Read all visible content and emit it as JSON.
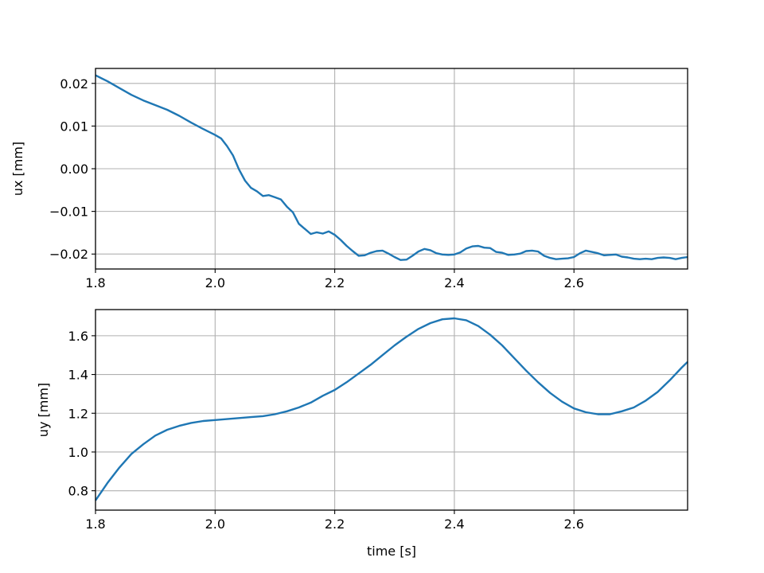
{
  "chart_data": [
    {
      "type": "line",
      "title": "",
      "xlabel": "",
      "ylabel": "ux [mm]",
      "xlim": [
        1.8,
        2.79
      ],
      "ylim": [
        -0.0235,
        0.0235
      ],
      "xticks": [
        "1.8",
        "2.0",
        "2.2",
        "2.4",
        "2.6"
      ],
      "yticks": [
        "−0.02",
        "−0.01",
        "0.00",
        "0.01",
        "0.02"
      ],
      "grid": true,
      "series": [
        {
          "color": "#1f77b4",
          "x": [
            1.8,
            1.82,
            1.84,
            1.86,
            1.88,
            1.9,
            1.92,
            1.94,
            1.96,
            1.98,
            2.0,
            2.01,
            2.02,
            2.03,
            2.04,
            2.05,
            2.06,
            2.07,
            2.08,
            2.09,
            2.1,
            2.11,
            2.12,
            2.13,
            2.14,
            2.15,
            2.16,
            2.17,
            2.18,
            2.19,
            2.2,
            2.21,
            2.22,
            2.23,
            2.24,
            2.25,
            2.26,
            2.27,
            2.28,
            2.29,
            2.3,
            2.31,
            2.32,
            2.33,
            2.34,
            2.35,
            2.36,
            2.37,
            2.38,
            2.39,
            2.4,
            2.41,
            2.42,
            2.43,
            2.44,
            2.45,
            2.46,
            2.47,
            2.48,
            2.49,
            2.5,
            2.51,
            2.52,
            2.53,
            2.54,
            2.55,
            2.56,
            2.57,
            2.58,
            2.59,
            2.6,
            2.61,
            2.62,
            2.63,
            2.64,
            2.65,
            2.66,
            2.67,
            2.68,
            2.69,
            2.7,
            2.71,
            2.72,
            2.73,
            2.74,
            2.75,
            2.76,
            2.77,
            2.78,
            2.79
          ],
          "y": [
            0.0219,
            0.0205,
            0.0189,
            0.0173,
            0.016,
            0.0149,
            0.0138,
            0.0124,
            0.0108,
            0.0093,
            0.0079,
            0.0071,
            0.0053,
            0.0031,
            -0.0002,
            -0.0028,
            -0.0045,
            -0.0053,
            -0.0064,
            -0.0062,
            -0.0067,
            -0.0072,
            -0.0089,
            -0.0102,
            -0.0129,
            -0.0141,
            -0.0153,
            -0.0149,
            -0.0152,
            -0.0147,
            -0.0155,
            -0.0167,
            -0.0181,
            -0.0193,
            -0.0204,
            -0.0203,
            -0.0197,
            -0.0193,
            -0.0192,
            -0.0199,
            -0.0207,
            -0.0214,
            -0.0213,
            -0.0204,
            -0.0194,
            -0.0188,
            -0.0191,
            -0.0198,
            -0.0201,
            -0.0202,
            -0.0201,
            -0.0196,
            -0.0187,
            -0.0182,
            -0.0181,
            -0.0185,
            -0.0186,
            -0.0195,
            -0.0197,
            -0.0202,
            -0.0201,
            -0.0199,
            -0.0193,
            -0.0192,
            -0.0194,
            -0.0204,
            -0.0209,
            -0.0212,
            -0.0211,
            -0.021,
            -0.0207,
            -0.0198,
            -0.0192,
            -0.0195,
            -0.0198,
            -0.0203,
            -0.0202,
            -0.0201,
            -0.0206,
            -0.0208,
            -0.0211,
            -0.0212,
            -0.0211,
            -0.0212,
            -0.0209,
            -0.0208,
            -0.0209,
            -0.0212,
            -0.0209,
            -0.0207
          ]
        }
      ]
    },
    {
      "type": "line",
      "title": "",
      "xlabel": "time [s]",
      "ylabel": "uy [mm]",
      "xlim": [
        1.8,
        2.79
      ],
      "ylim": [
        0.7,
        1.735
      ],
      "xticks": [
        "1.8",
        "2.0",
        "2.2",
        "2.4",
        "2.6"
      ],
      "yticks": [
        "0.8",
        "1.0",
        "1.2",
        "1.4",
        "1.6"
      ],
      "grid": true,
      "series": [
        {
          "color": "#1f77b4",
          "x": [
            1.8,
            1.82,
            1.84,
            1.86,
            1.88,
            1.9,
            1.92,
            1.94,
            1.96,
            1.98,
            2.0,
            2.02,
            2.04,
            2.06,
            2.08,
            2.1,
            2.12,
            2.14,
            2.16,
            2.18,
            2.2,
            2.22,
            2.24,
            2.26,
            2.28,
            2.3,
            2.32,
            2.34,
            2.36,
            2.38,
            2.4,
            2.42,
            2.44,
            2.46,
            2.48,
            2.5,
            2.52,
            2.54,
            2.56,
            2.58,
            2.6,
            2.62,
            2.64,
            2.66,
            2.68,
            2.7,
            2.72,
            2.74,
            2.76,
            2.78,
            2.79
          ],
          "y": [
            0.75,
            0.84,
            0.92,
            0.99,
            1.04,
            1.085,
            1.115,
            1.135,
            1.15,
            1.16,
            1.165,
            1.17,
            1.175,
            1.18,
            1.185,
            1.195,
            1.21,
            1.23,
            1.255,
            1.29,
            1.32,
            1.36,
            1.405,
            1.45,
            1.5,
            1.55,
            1.595,
            1.635,
            1.665,
            1.685,
            1.69,
            1.68,
            1.65,
            1.605,
            1.55,
            1.485,
            1.42,
            1.36,
            1.305,
            1.26,
            1.225,
            1.205,
            1.195,
            1.195,
            1.21,
            1.23,
            1.265,
            1.31,
            1.37,
            1.435,
            1.465
          ]
        }
      ]
    }
  ]
}
